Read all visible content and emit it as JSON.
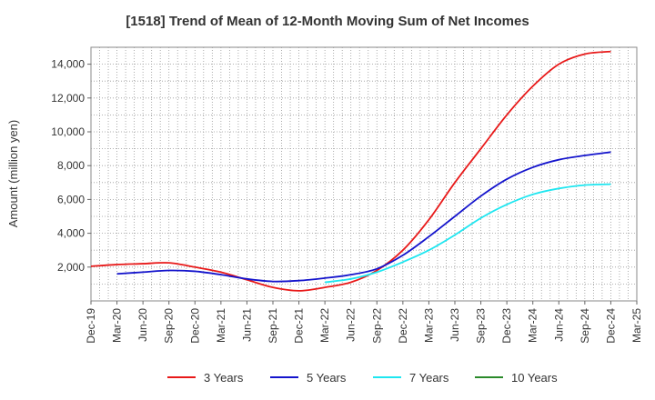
{
  "chart_data": {
    "type": "line",
    "title": "[1518]  Trend of Mean of 12-Month Moving Sum of Net Incomes",
    "xlabel": "",
    "ylabel": "Amount (million yen)",
    "x": [
      "Dec-19",
      "Mar-20",
      "Jun-20",
      "Sep-20",
      "Dec-20",
      "Mar-21",
      "Jun-21",
      "Sep-21",
      "Dec-21",
      "Mar-22",
      "Jun-22",
      "Sep-22",
      "Dec-22",
      "Mar-23",
      "Jun-23",
      "Sep-23",
      "Dec-23",
      "Mar-24",
      "Jun-24",
      "Sep-24",
      "Dec-24",
      "Mar-25"
    ],
    "ylim": [
      0,
      15000
    ],
    "yticks": [
      2000,
      4000,
      6000,
      8000,
      10000,
      12000,
      14000
    ],
    "ytick_labels": [
      "2,000",
      "4,000",
      "6,000",
      "8,000",
      "10,000",
      "12,000",
      "14,000"
    ],
    "grid": true,
    "legend_position": "bottom",
    "series": [
      {
        "name": "3 Years",
        "color": "#e81919",
        "values": [
          2050,
          2150,
          2200,
          2250,
          2000,
          1700,
          1250,
          800,
          600,
          800,
          1100,
          1800,
          3000,
          4800,
          7000,
          9000,
          11000,
          12700,
          14000,
          14600,
          14750,
          null
        ]
      },
      {
        "name": "5 Years",
        "color": "#1414cc",
        "values": [
          null,
          1600,
          1700,
          1800,
          1750,
          1550,
          1300,
          1150,
          1200,
          1350,
          1550,
          1900,
          2700,
          3800,
          5000,
          6200,
          7200,
          7900,
          8350,
          8600,
          8800,
          null
        ]
      },
      {
        "name": "7 Years",
        "color": "#1ee6f0",
        "values": [
          null,
          null,
          null,
          null,
          null,
          null,
          null,
          null,
          null,
          1100,
          1300,
          1700,
          2300,
          3000,
          3900,
          4900,
          5700,
          6300,
          6650,
          6850,
          6900,
          null
        ]
      },
      {
        "name": "10 Years",
        "color": "#2a8a2a",
        "values": [
          null,
          null,
          null,
          null,
          null,
          null,
          null,
          null,
          null,
          null,
          null,
          null,
          null,
          null,
          null,
          null,
          null,
          null,
          null,
          null,
          null,
          null
        ]
      }
    ]
  }
}
